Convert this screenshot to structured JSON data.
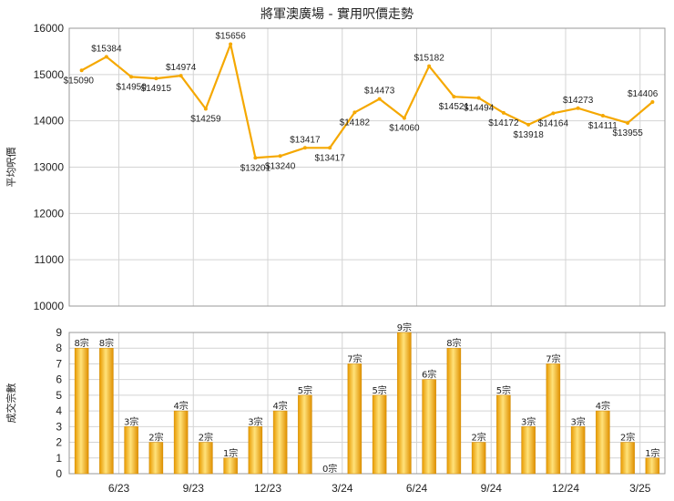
{
  "chart_data": [
    {
      "type": "line",
      "title": "將軍澳廣場 - 實用呎價走勢",
      "ylabel": "平均呎價",
      "ylim": [
        10000,
        16000
      ],
      "yticks": [
        10000,
        11000,
        12000,
        13000,
        14000,
        15000,
        16000
      ],
      "color": "#f5a800",
      "grid": true,
      "x_tick_labels": [
        "6/23",
        "9/23",
        "12/23",
        "3/24",
        "6/24",
        "9/24",
        "12/24",
        "3/25"
      ],
      "points": [
        {
          "v": 15090,
          "label": "$15090"
        },
        {
          "v": 15384,
          "label": "$15384"
        },
        {
          "v": 14950,
          "label": "$14950"
        },
        {
          "v": 14915,
          "label": "$14915"
        },
        {
          "v": 14974,
          "label": "$14974"
        },
        {
          "v": 14259,
          "label": "$14259"
        },
        {
          "v": 15656,
          "label": "$15656"
        },
        {
          "v": 13201,
          "label": "$13201"
        },
        {
          "v": 13240,
          "label": "$13240"
        },
        {
          "v": 13417,
          "label": "$13417"
        },
        {
          "v": 13417,
          "label": "$13417"
        },
        {
          "v": 14182,
          "label": "$14182"
        },
        {
          "v": 14473,
          "label": "$14473"
        },
        {
          "v": 14060,
          "label": "$14060"
        },
        {
          "v": 15182,
          "label": "$15182"
        },
        {
          "v": 14521,
          "label": "$14521"
        },
        {
          "v": 14494,
          "label": "$14494"
        },
        {
          "v": 14172,
          "label": "$14172"
        },
        {
          "v": 13918,
          "label": "$13918"
        },
        {
          "v": 14164,
          "label": "$14164"
        },
        {
          "v": 14273,
          "label": "$14273"
        },
        {
          "v": 14111,
          "label": "$14111"
        },
        {
          "v": 13955,
          "label": "$13955"
        },
        {
          "v": 14406,
          "label": "$14406"
        }
      ]
    },
    {
      "type": "bar",
      "ylabel": "成交宗數",
      "ylim": [
        0,
        9
      ],
      "yticks": [
        0,
        1,
        2,
        3,
        4,
        5,
        6,
        7,
        8,
        9
      ],
      "color": "#f5a800",
      "grid": true,
      "x_tick_labels": [
        "6/23",
        "9/23",
        "12/23",
        "3/24",
        "6/24",
        "9/24",
        "12/24",
        "3/25"
      ],
      "bars": [
        {
          "v": 8,
          "label": "8宗"
        },
        {
          "v": 8,
          "label": "8宗"
        },
        {
          "v": 3,
          "label": "3宗"
        },
        {
          "v": 2,
          "label": "2宗"
        },
        {
          "v": 4,
          "label": "4宗"
        },
        {
          "v": 2,
          "label": "2宗"
        },
        {
          "v": 1,
          "label": "1宗"
        },
        {
          "v": 3,
          "label": "3宗"
        },
        {
          "v": 4,
          "label": "4宗"
        },
        {
          "v": 5,
          "label": "5宗"
        },
        {
          "v": 0,
          "label": "0宗"
        },
        {
          "v": 7,
          "label": "7宗"
        },
        {
          "v": 5,
          "label": "5宗"
        },
        {
          "v": 9,
          "label": "9宗"
        },
        {
          "v": 6,
          "label": "6宗"
        },
        {
          "v": 8,
          "label": "8宗"
        },
        {
          "v": 2,
          "label": "2宗"
        },
        {
          "v": 5,
          "label": "5宗"
        },
        {
          "v": 3,
          "label": "3宗"
        },
        {
          "v": 7,
          "label": "7宗"
        },
        {
          "v": 3,
          "label": "3宗"
        },
        {
          "v": 4,
          "label": "4宗"
        },
        {
          "v": 2,
          "label": "2宗"
        },
        {
          "v": 1,
          "label": "1宗"
        }
      ]
    }
  ]
}
